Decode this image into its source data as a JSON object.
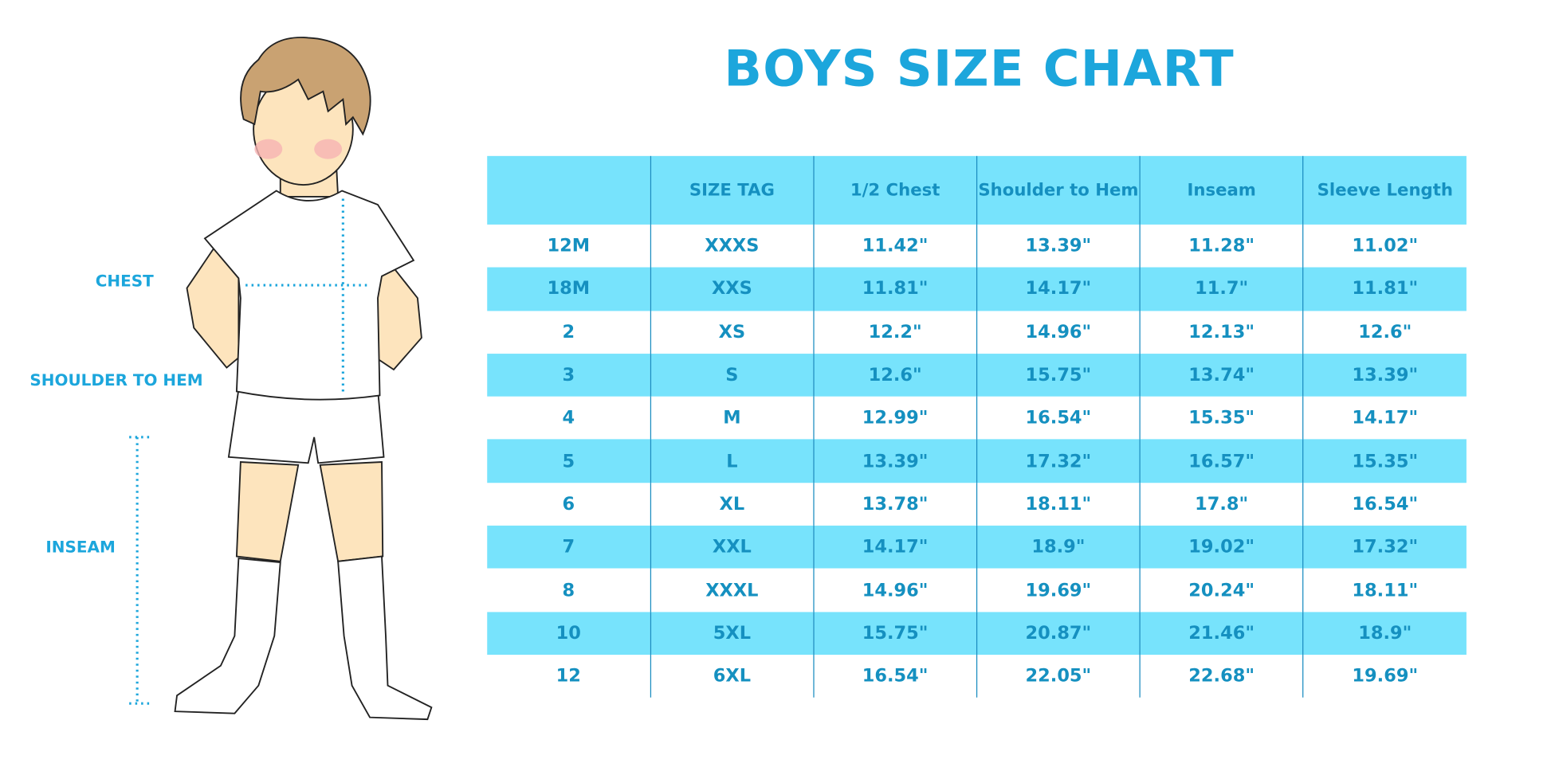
{
  "title": "BOYS SIZE CHART",
  "figure_labels": {
    "chest": "CHEST",
    "shoulder_to_hem": "SHOULDER TO HEM",
    "inseam": "INSEAM"
  },
  "colors": {
    "accent": "#1ca6dc",
    "header_bg": "#77e3fc",
    "text": "#1590c0"
  },
  "table": {
    "headers": [
      "",
      "SIZE TAG",
      "1/2 Chest",
      "Shoulder to Hem",
      "Inseam",
      "Sleeve Length"
    ],
    "rows": [
      [
        "12M",
        "XXXS",
        "11.42\"",
        "13.39\"",
        "11.28\"",
        "11.02\""
      ],
      [
        "18M",
        "XXS",
        "11.81\"",
        "14.17\"",
        "11.7\"",
        "11.81\""
      ],
      [
        "2",
        "XS",
        "12.2\"",
        "14.96\"",
        "12.13\"",
        "12.6\""
      ],
      [
        "3",
        "S",
        "12.6\"",
        "15.75\"",
        "13.74\"",
        "13.39\""
      ],
      [
        "4",
        "M",
        "12.99\"",
        "16.54\"",
        "15.35\"",
        "14.17\""
      ],
      [
        "5",
        "L",
        "13.39\"",
        "17.32\"",
        "16.57\"",
        "15.35\""
      ],
      [
        "6",
        "XL",
        "13.78\"",
        "18.11\"",
        "17.8\"",
        "16.54\""
      ],
      [
        "7",
        "XXL",
        "14.17\"",
        "18.9\"",
        "19.02\"",
        "17.32\""
      ],
      [
        "8",
        "XXXL",
        "14.96\"",
        "19.69\"",
        "20.24\"",
        "18.11\""
      ],
      [
        "10",
        "5XL",
        "15.75\"",
        "20.87\"",
        "21.46\"",
        "18.9\""
      ],
      [
        "12",
        "6XL",
        "16.54\"",
        "22.05\"",
        "22.68\"",
        "19.69\""
      ]
    ]
  }
}
